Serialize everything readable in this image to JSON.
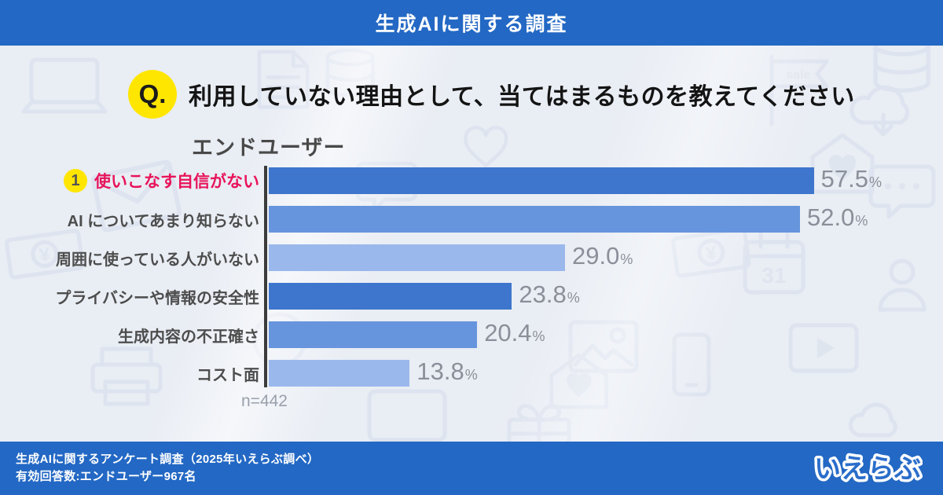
{
  "header": {
    "title": "生成AIに関する調査"
  },
  "question": {
    "badge": "Q.",
    "text": "利用していない理由として、当てはまるものを教えてください"
  },
  "chart_data": {
    "type": "bar",
    "orientation": "horizontal",
    "title": "エンドユーザー",
    "categories": [
      "使いこなす自信がない",
      "AI についてあまり知らない",
      "周囲に使っている人がいない",
      "プライバシーや情報の安全性",
      "生成内容の不正確さ",
      "コスト面"
    ],
    "values": [
      57.5,
      52.0,
      29.0,
      23.8,
      20.4,
      13.8
    ],
    "value_labels": [
      "57.5",
      "52.0",
      "29.0",
      "23.8",
      "20.4",
      "13.8"
    ],
    "unit": "%",
    "xlim": [
      0,
      60
    ],
    "grid": false,
    "legend": false,
    "sample_size": "n=442",
    "highlight_rank": "1",
    "highlight_category": "使いこなす自信がない",
    "bar_colors": [
      "#3D76CC",
      "#6795DD",
      "#9BB8EC",
      "#3D76CC",
      "#6795DD",
      "#9BB8EC"
    ]
  },
  "footer": {
    "line1": "生成AIに関するアンケート調査（2025年いえらぶ調べ）",
    "line2": "有効回答数:エンドユーザー967名",
    "logo": "いえらぶ"
  },
  "colors": {
    "bar_blue": "#2368C4",
    "background": "#E9EDF4",
    "accent_yellow": "#FFE600",
    "highlight_red": "#E8145A",
    "bar_dark": "#3D76CC",
    "bar_medium": "#6795DD",
    "bar_light": "#9BB8EC",
    "value_gray": "#8B8F99"
  },
  "watermark_icons": [
    "laptop",
    "document",
    "database",
    "sale-flag",
    "cloud-download",
    "house-heart",
    "chat-bubble",
    "heart",
    "envelope",
    "banknote-yen",
    "calendar-31",
    "person",
    "play-circle",
    "photo",
    "video-player",
    "smartphone",
    "printer",
    "monitor",
    "gift",
    "cloud"
  ]
}
